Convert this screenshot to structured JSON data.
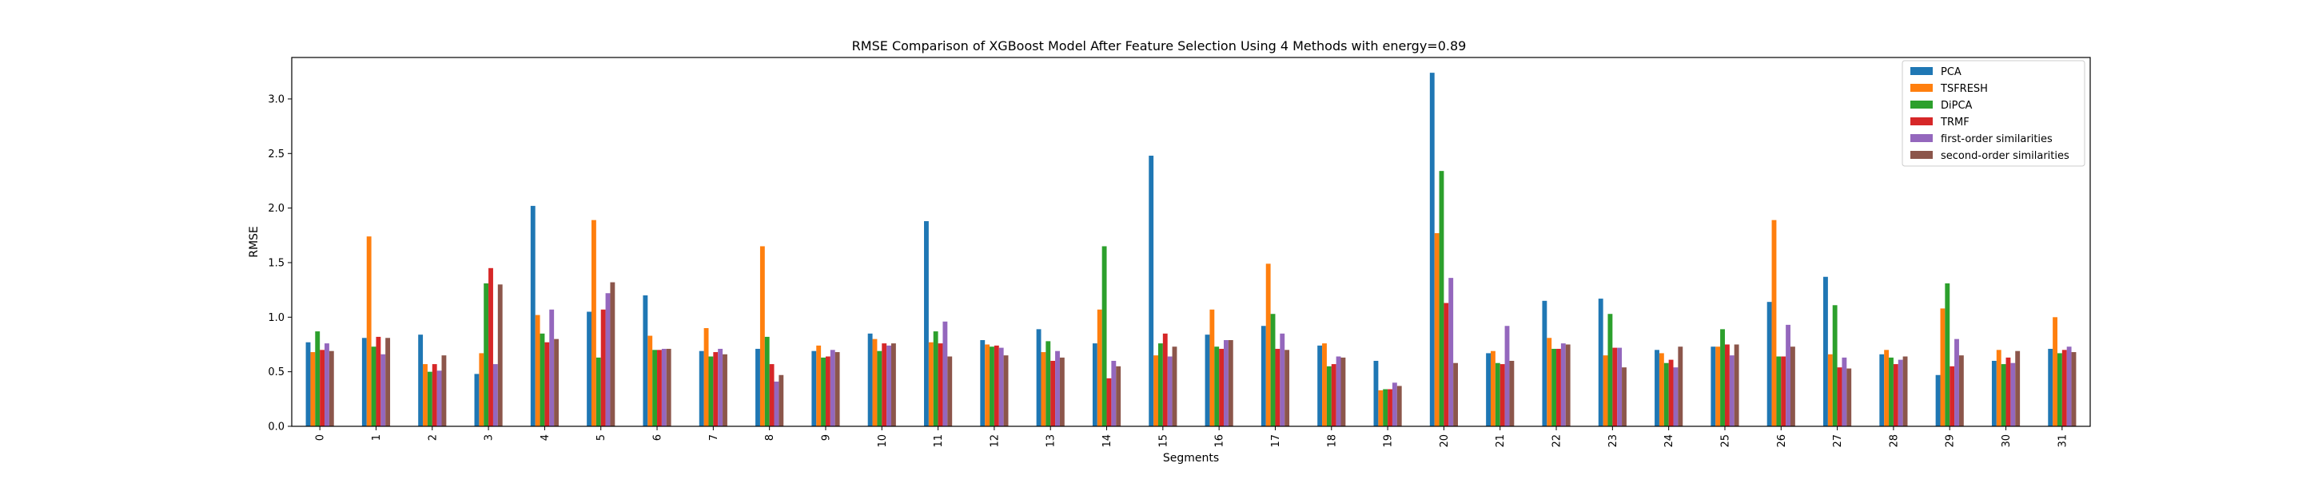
{
  "chart_data": {
    "type": "bar",
    "title": "RMSE Comparison of XGBoost Model After Feature Selection Using 4 Methods with energy=0.89",
    "xlabel": "Segments",
    "ylabel": "RMSE",
    "ylim": [
      0,
      3.38
    ],
    "yticks": [
      0.0,
      0.5,
      1.0,
      1.5,
      2.0,
      2.5,
      3.0
    ],
    "ytick_labels": [
      "0.0",
      "0.5",
      "1.0",
      "1.5",
      "2.0",
      "2.5",
      "3.0"
    ],
    "legend_position": "top-right",
    "grid": false,
    "categories": [
      "0",
      "1",
      "2",
      "3",
      "4",
      "5",
      "6",
      "7",
      "8",
      "9",
      "10",
      "11",
      "12",
      "13",
      "14",
      "15",
      "16",
      "17",
      "18",
      "19",
      "20",
      "21",
      "22",
      "23",
      "24",
      "25",
      "26",
      "27",
      "28",
      "29",
      "30",
      "31"
    ],
    "series": [
      {
        "name": "PCA",
        "color": "#1f77b4",
        "values": [
          0.77,
          0.81,
          0.84,
          0.48,
          2.02,
          1.05,
          1.2,
          0.69,
          0.71,
          0.69,
          0.85,
          1.88,
          0.79,
          0.89,
          0.76,
          2.48,
          0.84,
          0.92,
          0.74,
          0.6,
          3.24,
          0.67,
          1.15,
          1.17,
          0.7,
          0.73,
          1.14,
          1.37,
          0.66,
          0.47,
          0.6,
          0.71
        ]
      },
      {
        "name": "TSFRESH",
        "color": "#ff7f0e",
        "values": [
          0.68,
          1.74,
          0.57,
          0.67,
          1.02,
          1.89,
          0.83,
          0.9,
          1.65,
          0.74,
          0.8,
          0.77,
          0.75,
          0.68,
          1.07,
          0.65,
          1.07,
          1.49,
          0.76,
          0.33,
          1.77,
          0.69,
          0.81,
          0.65,
          0.67,
          0.73,
          1.89,
          0.66,
          0.7,
          1.08,
          0.7,
          1.0
        ]
      },
      {
        "name": "DiPCA",
        "color": "#2ca02c",
        "values": [
          0.87,
          0.73,
          0.5,
          1.31,
          0.85,
          0.63,
          0.7,
          0.64,
          0.82,
          0.63,
          0.69,
          0.87,
          0.73,
          0.78,
          1.65,
          0.76,
          0.73,
          1.03,
          0.55,
          0.34,
          2.34,
          0.58,
          0.71,
          1.03,
          0.58,
          0.89,
          0.64,
          1.11,
          0.63,
          1.31,
          0.57,
          0.67
        ]
      },
      {
        "name": "TRMF",
        "color": "#d62728",
        "values": [
          0.7,
          0.82,
          0.57,
          1.45,
          0.77,
          1.07,
          0.7,
          0.68,
          0.57,
          0.64,
          0.76,
          0.76,
          0.74,
          0.6,
          0.44,
          0.85,
          0.71,
          0.71,
          0.57,
          0.34,
          1.13,
          0.57,
          0.71,
          0.72,
          0.61,
          0.75,
          0.64,
          0.54,
          0.57,
          0.55,
          0.63,
          0.7
        ]
      },
      {
        "name": "first-order similarities",
        "color": "#9467bd",
        "values": [
          0.76,
          0.66,
          0.51,
          0.57,
          1.07,
          1.22,
          0.71,
          0.71,
          0.41,
          0.7,
          0.74,
          0.96,
          0.72,
          0.69,
          0.6,
          0.64,
          0.79,
          0.85,
          0.64,
          0.4,
          1.36,
          0.92,
          0.76,
          0.72,
          0.54,
          0.65,
          0.93,
          0.63,
          0.61,
          0.8,
          0.58,
          0.73
        ]
      },
      {
        "name": "second-order similarities",
        "color": "#8c564b",
        "values": [
          0.69,
          0.81,
          0.65,
          1.3,
          0.8,
          1.32,
          0.71,
          0.66,
          0.47,
          0.68,
          0.76,
          0.64,
          0.65,
          0.63,
          0.55,
          0.73,
          0.79,
          0.7,
          0.63,
          0.37,
          0.58,
          0.6,
          0.75,
          0.54,
          0.73,
          0.75,
          0.73,
          0.53,
          0.64,
          0.65,
          0.69,
          0.68
        ]
      }
    ]
  }
}
